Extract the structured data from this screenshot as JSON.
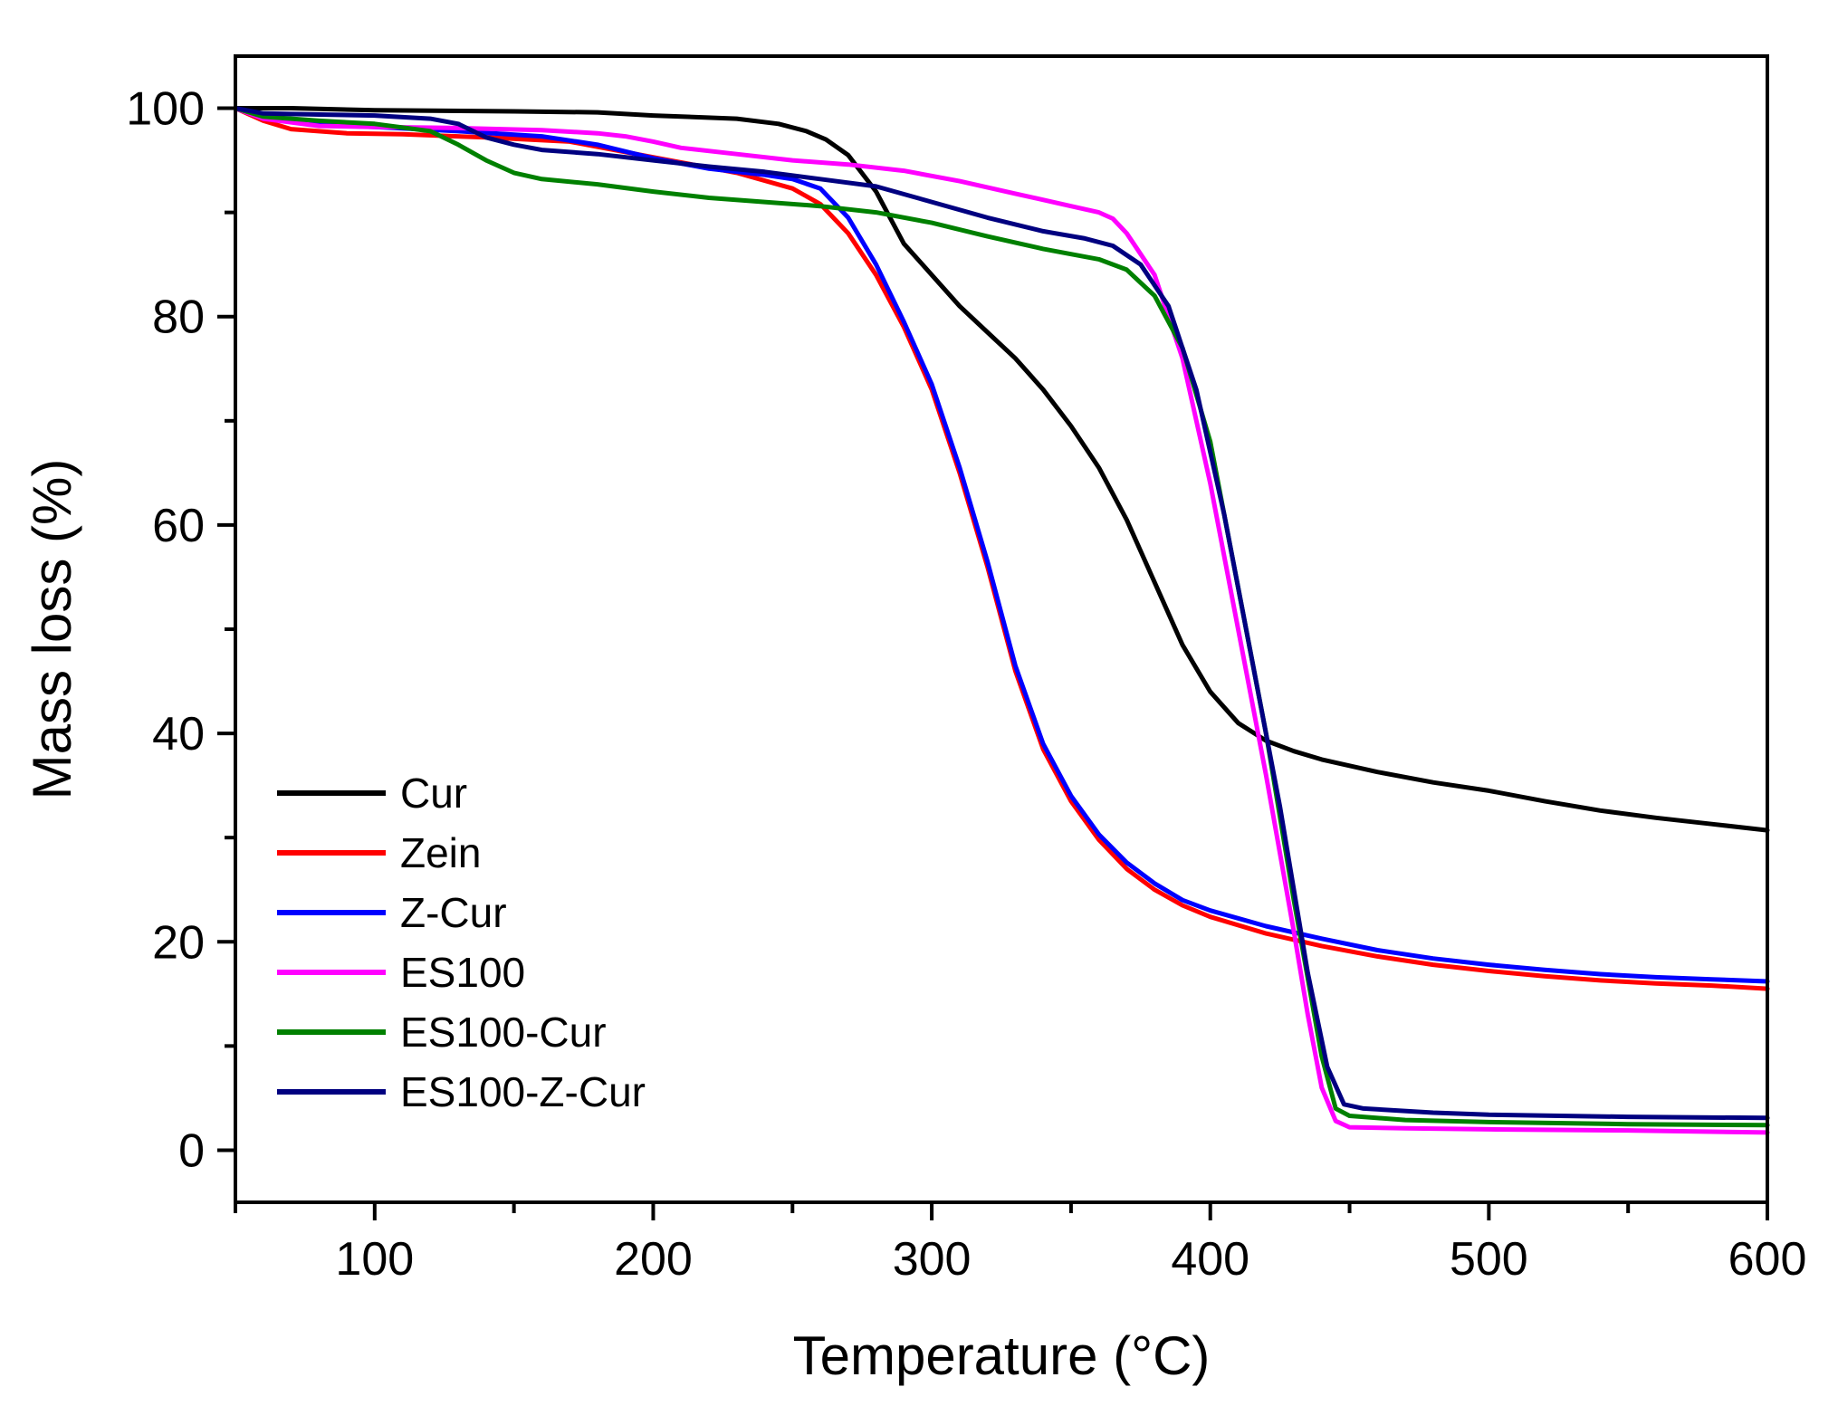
{
  "chart_data": {
    "type": "line",
    "title": "",
    "xlabel": "Temperature (°C)",
    "ylabel": "Mass loss (%)",
    "xlim": [
      50,
      600
    ],
    "ylim": [
      -5,
      105
    ],
    "x_major_ticks": [
      100,
      200,
      300,
      400,
      500,
      600
    ],
    "x_tick_labels": [
      "100",
      "200",
      "300",
      "400",
      "500",
      "600"
    ],
    "y_major_ticks": [
      0,
      20,
      40,
      60,
      80,
      100
    ],
    "y_tick_labels": [
      "0",
      "20",
      "40",
      "60",
      "80",
      "100"
    ],
    "x_minor_step": 50,
    "y_minor_step": 10,
    "grid": false,
    "legend_position": "bottom-left",
    "series": [
      {
        "name": "Cur",
        "color": "#000000",
        "points": [
          [
            50,
            100
          ],
          [
            70,
            100
          ],
          [
            100,
            99.8
          ],
          [
            150,
            99.7
          ],
          [
            180,
            99.6
          ],
          [
            200,
            99.3
          ],
          [
            230,
            99
          ],
          [
            245,
            98.5
          ],
          [
            255,
            97.8
          ],
          [
            262,
            97
          ],
          [
            270,
            95.5
          ],
          [
            280,
            92
          ],
          [
            290,
            87
          ],
          [
            300,
            84
          ],
          [
            310,
            81
          ],
          [
            320,
            78.5
          ],
          [
            330,
            76
          ],
          [
            340,
            73
          ],
          [
            350,
            69.5
          ],
          [
            360,
            65.5
          ],
          [
            370,
            60.5
          ],
          [
            380,
            54.5
          ],
          [
            390,
            48.5
          ],
          [
            400,
            44
          ],
          [
            410,
            41
          ],
          [
            420,
            39.3
          ],
          [
            430,
            38.3
          ],
          [
            440,
            37.5
          ],
          [
            450,
            36.9
          ],
          [
            460,
            36.3
          ],
          [
            480,
            35.3
          ],
          [
            500,
            34.5
          ],
          [
            520,
            33.5
          ],
          [
            540,
            32.6
          ],
          [
            560,
            31.9
          ],
          [
            580,
            31.3
          ],
          [
            600,
            30.7
          ]
        ]
      },
      {
        "name": "Zein",
        "color": "#ff0000",
        "points": [
          [
            50,
            100
          ],
          [
            60,
            98.8
          ],
          [
            70,
            98
          ],
          [
            90,
            97.6
          ],
          [
            110,
            97.5
          ],
          [
            140,
            97.2
          ],
          [
            170,
            96.8
          ],
          [
            190,
            95.8
          ],
          [
            210,
            94.8
          ],
          [
            230,
            93.8
          ],
          [
            250,
            92.3
          ],
          [
            260,
            90.8
          ],
          [
            270,
            88
          ],
          [
            280,
            84
          ],
          [
            290,
            79
          ],
          [
            300,
            73
          ],
          [
            310,
            65
          ],
          [
            320,
            56
          ],
          [
            330,
            46
          ],
          [
            340,
            38.5
          ],
          [
            350,
            33.5
          ],
          [
            360,
            29.8
          ],
          [
            370,
            27
          ],
          [
            380,
            25
          ],
          [
            390,
            23.5
          ],
          [
            400,
            22.4
          ],
          [
            420,
            20.8
          ],
          [
            440,
            19.6
          ],
          [
            460,
            18.6
          ],
          [
            480,
            17.8
          ],
          [
            500,
            17.2
          ],
          [
            520,
            16.7
          ],
          [
            540,
            16.3
          ],
          [
            560,
            16
          ],
          [
            580,
            15.8
          ],
          [
            600,
            15.5
          ]
        ]
      },
      {
        "name": "Z-Cur",
        "color": "#0000ff",
        "points": [
          [
            50,
            100
          ],
          [
            60,
            99
          ],
          [
            80,
            98.4
          ],
          [
            100,
            98.2
          ],
          [
            130,
            97.8
          ],
          [
            160,
            97.3
          ],
          [
            180,
            96.5
          ],
          [
            200,
            95.2
          ],
          [
            220,
            94.2
          ],
          [
            240,
            93.6
          ],
          [
            250,
            93.2
          ],
          [
            260,
            92.3
          ],
          [
            270,
            89.5
          ],
          [
            280,
            85
          ],
          [
            290,
            79.5
          ],
          [
            300,
            73.5
          ],
          [
            310,
            65.5
          ],
          [
            320,
            56.5
          ],
          [
            330,
            46.5
          ],
          [
            340,
            39
          ],
          [
            350,
            34
          ],
          [
            360,
            30.3
          ],
          [
            370,
            27.6
          ],
          [
            380,
            25.6
          ],
          [
            390,
            24
          ],
          [
            400,
            23
          ],
          [
            420,
            21.5
          ],
          [
            440,
            20.3
          ],
          [
            460,
            19.2
          ],
          [
            480,
            18.4
          ],
          [
            500,
            17.8
          ],
          [
            520,
            17.3
          ],
          [
            540,
            16.9
          ],
          [
            560,
            16.6
          ],
          [
            580,
            16.4
          ],
          [
            600,
            16.2
          ]
        ]
      },
      {
        "name": "ES100",
        "color": "#ff00ff",
        "points": [
          [
            50,
            100
          ],
          [
            60,
            99
          ],
          [
            80,
            98.3
          ],
          [
            100,
            98.2
          ],
          [
            130,
            98.1
          ],
          [
            160,
            97.9
          ],
          [
            180,
            97.6
          ],
          [
            190,
            97.3
          ],
          [
            200,
            96.8
          ],
          [
            210,
            96.2
          ],
          [
            230,
            95.6
          ],
          [
            250,
            95
          ],
          [
            270,
            94.6
          ],
          [
            290,
            94
          ],
          [
            310,
            93
          ],
          [
            330,
            91.8
          ],
          [
            350,
            90.6
          ],
          [
            360,
            90
          ],
          [
            365,
            89.4
          ],
          [
            370,
            88
          ],
          [
            380,
            84
          ],
          [
            390,
            76
          ],
          [
            400,
            64
          ],
          [
            410,
            50
          ],
          [
            420,
            36
          ],
          [
            430,
            21
          ],
          [
            435,
            13
          ],
          [
            440,
            6
          ],
          [
            445,
            2.8
          ],
          [
            450,
            2.2
          ],
          [
            470,
            2.1
          ],
          [
            500,
            2
          ],
          [
            550,
            1.9
          ],
          [
            600,
            1.7
          ]
        ]
      },
      {
        "name": "ES100-Cur",
        "color": "#008000",
        "points": [
          [
            50,
            100
          ],
          [
            60,
            99.2
          ],
          [
            80,
            98.8
          ],
          [
            100,
            98.5
          ],
          [
            120,
            97.8
          ],
          [
            130,
            96.5
          ],
          [
            140,
            95
          ],
          [
            150,
            93.8
          ],
          [
            160,
            93.2
          ],
          [
            180,
            92.7
          ],
          [
            200,
            92
          ],
          [
            220,
            91.4
          ],
          [
            240,
            91
          ],
          [
            260,
            90.6
          ],
          [
            280,
            90
          ],
          [
            300,
            89
          ],
          [
            320,
            87.7
          ],
          [
            340,
            86.5
          ],
          [
            360,
            85.5
          ],
          [
            370,
            84.5
          ],
          [
            380,
            82
          ],
          [
            390,
            77
          ],
          [
            400,
            68
          ],
          [
            410,
            54
          ],
          [
            420,
            40
          ],
          [
            430,
            24
          ],
          [
            440,
            9
          ],
          [
            445,
            4
          ],
          [
            450,
            3.3
          ],
          [
            470,
            2.9
          ],
          [
            500,
            2.7
          ],
          [
            550,
            2.5
          ],
          [
            600,
            2.4
          ]
        ]
      },
      {
        "name": "ES100-Z-Cur",
        "color": "#000080",
        "points": [
          [
            50,
            100
          ],
          [
            60,
            99.5
          ],
          [
            80,
            99.4
          ],
          [
            100,
            99.3
          ],
          [
            120,
            99
          ],
          [
            130,
            98.5
          ],
          [
            140,
            97.2
          ],
          [
            150,
            96.5
          ],
          [
            160,
            96
          ],
          [
            180,
            95.6
          ],
          [
            200,
            95
          ],
          [
            220,
            94.4
          ],
          [
            240,
            93.9
          ],
          [
            260,
            93.2
          ],
          [
            280,
            92.5
          ],
          [
            300,
            91
          ],
          [
            320,
            89.5
          ],
          [
            340,
            88.2
          ],
          [
            355,
            87.5
          ],
          [
            365,
            86.8
          ],
          [
            375,
            85
          ],
          [
            385,
            81
          ],
          [
            395,
            73
          ],
          [
            405,
            61
          ],
          [
            415,
            47
          ],
          [
            425,
            33
          ],
          [
            435,
            17
          ],
          [
            442,
            8
          ],
          [
            448,
            4.4
          ],
          [
            455,
            4
          ],
          [
            480,
            3.6
          ],
          [
            500,
            3.4
          ],
          [
            550,
            3.2
          ],
          [
            600,
            3.1
          ]
        ]
      }
    ]
  }
}
